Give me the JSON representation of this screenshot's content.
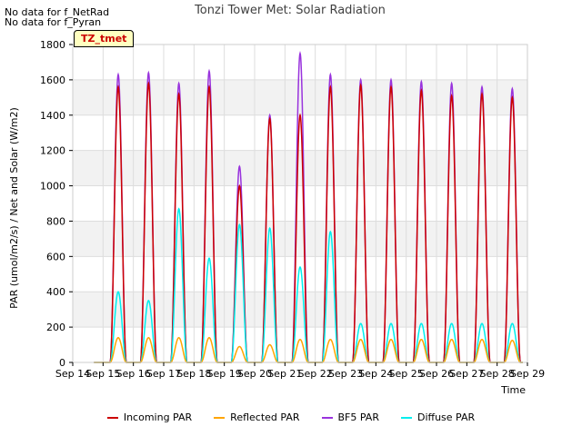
{
  "notes": [
    "No data for f_NetRad",
    "No data for f_Pyran"
  ],
  "site_badge": "TZ_tmet",
  "chart_data": {
    "type": "line",
    "title": "Tonzi Tower Met: Solar Radiation",
    "xlabel": "Time",
    "ylabel": "PAR (umol/m2/s) / Net and Solar (W/m2)",
    "x_ticks": [
      14,
      15,
      16,
      17,
      18,
      19,
      20,
      21,
      22,
      23,
      24,
      25,
      26,
      27,
      28,
      29
    ],
    "x_tick_labels": [
      "Sep 14",
      "Sep 15",
      "Sep 16",
      "Sep 17",
      "Sep 18",
      "Sep 19",
      "Sep 20",
      "Sep 21",
      "Sep 22",
      "Sep 23",
      "Sep 24",
      "Sep 25",
      "Sep 26",
      "Sep 27",
      "Sep 28",
      "Sep 29"
    ],
    "xlim": [
      14,
      29
    ],
    "ylim": [
      0,
      1800
    ],
    "y_ticks": [
      0,
      200,
      400,
      600,
      800,
      1000,
      1200,
      1400,
      1600,
      1800
    ],
    "grid": true,
    "legend_position": "bottom",
    "days": [
      15,
      16,
      17,
      18,
      19,
      20,
      21,
      22,
      23,
      24,
      25,
      26,
      27,
      28
    ],
    "series": [
      {
        "name": "Incoming PAR",
        "color": "#cc0000",
        "daily_peak": [
          1560,
          1580,
          1520,
          1560,
          1000,
          1380,
          1400,
          1560,
          1570,
          1560,
          1540,
          1510,
          1520,
          1500
        ]
      },
      {
        "name": "Reflected PAR",
        "color": "#ffa500",
        "daily_peak": [
          140,
          140,
          140,
          140,
          90,
          100,
          130,
          130,
          130,
          130,
          130,
          130,
          130,
          125
        ]
      },
      {
        "name": "BF5 PAR",
        "color": "#9933dd",
        "daily_peak": [
          1630,
          1640,
          1580,
          1650,
          1110,
          1400,
          1750,
          1630,
          1600,
          1600,
          1590,
          1580,
          1560,
          1550
        ]
      },
      {
        "name": "Diffuse PAR",
        "color": "#00eeee",
        "daily_peak": [
          400,
          350,
          870,
          590,
          780,
          760,
          540,
          740,
          220,
          220,
          220,
          220,
          220,
          220
        ]
      }
    ]
  }
}
